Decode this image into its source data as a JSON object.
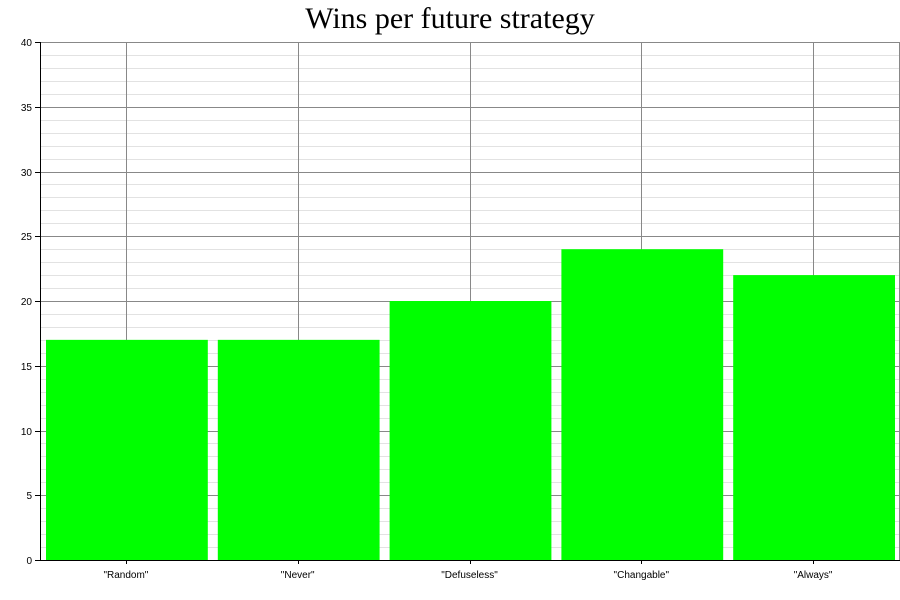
{
  "chart_data": {
    "type": "bar",
    "title": "Wins per future strategy",
    "categories": [
      "\"Random\"",
      "\"Never\"",
      "\"Defuseless\"",
      "\"Changable\"",
      "\"Always\""
    ],
    "values": [
      17,
      17,
      20,
      24,
      22
    ],
    "ylim": [
      0,
      40
    ],
    "yticks": [
      0,
      5,
      10,
      15,
      20,
      25,
      30,
      35,
      40
    ],
    "minor_grid_step": 1,
    "grid": true,
    "bar_color": "#00ff00",
    "major_grid_color": "#888888",
    "minor_grid_color": "#e2e2e2"
  }
}
